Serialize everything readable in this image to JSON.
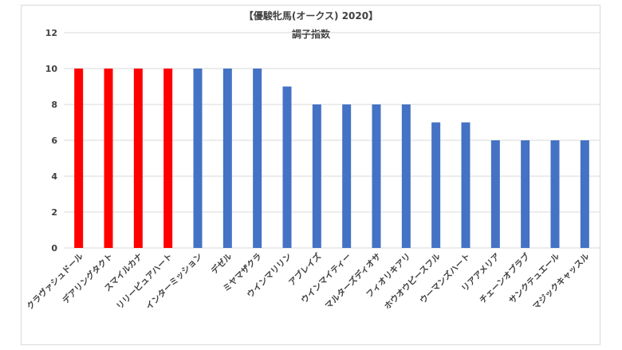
{
  "chart_data": {
    "type": "bar",
    "title": "【優駿牝馬(オークス) 2020】",
    "subtitle": "調子指数",
    "xlabel": "",
    "ylabel": "",
    "ylim": [
      0,
      12
    ],
    "yticks": [
      0,
      2,
      4,
      6,
      8,
      10,
      12
    ],
    "grid": true,
    "categories": [
      "クラヴァシュドール",
      "デアリングタクト",
      "スマイルカナ",
      "リリーピュアハート",
      "インターミッション",
      "デゼル",
      "ミヤマザクラ",
      "ウインマリリン",
      "アブレイズ",
      "ウインマイティー",
      "マルターズディオサ",
      "フィオリキアリ",
      "ホウオウピースフル",
      "ウーマンズハート",
      "リアアメリア",
      "チェーンオブラブ",
      "サンクテュエール",
      "マジックキャッスル"
    ],
    "values": [
      10,
      10,
      10,
      10,
      10,
      10,
      10,
      9,
      8,
      8,
      8,
      8,
      7,
      7,
      6,
      6,
      6,
      6
    ],
    "colors": [
      "#ff0000",
      "#ff0000",
      "#ff0000",
      "#ff0000",
      "#4472c4",
      "#4472c4",
      "#4472c4",
      "#4472c4",
      "#4472c4",
      "#4472c4",
      "#4472c4",
      "#4472c4",
      "#4472c4",
      "#4472c4",
      "#4472c4",
      "#4472c4",
      "#4472c4",
      "#4472c4"
    ]
  }
}
